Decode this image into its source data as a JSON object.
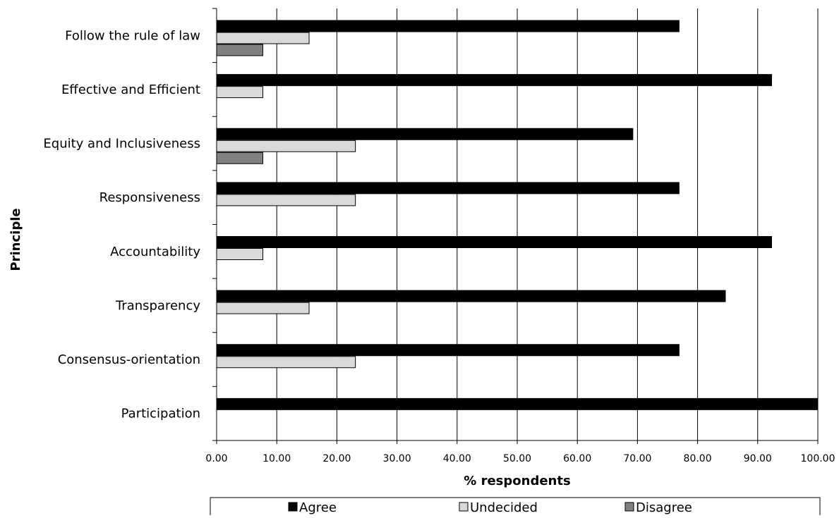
{
  "chart_data": {
    "type": "bar",
    "orientation": "horizontal",
    "categories": [
      "Participation",
      "Consensus-orientation",
      "Transparency",
      "Accountability",
      "Responsiveness",
      "Equity and Inclusiveness",
      "Effective and Efficient",
      "Follow the rule of law"
    ],
    "series": [
      {
        "name": "Agree",
        "color": "#000000",
        "values": [
          100,
          76.92,
          84.62,
          92.31,
          76.92,
          69.23,
          92.31,
          76.92
        ]
      },
      {
        "name": "Undecided",
        "color": "#d9d9d9",
        "values": [
          0,
          23.08,
          15.38,
          7.69,
          23.08,
          23.08,
          7.69,
          15.38
        ]
      },
      {
        "name": "Disagree",
        "color": "#808080",
        "values": [
          0,
          0,
          0,
          0,
          0,
          7.69,
          0,
          7.69
        ]
      }
    ],
    "xlabel": "% respondents",
    "ylabel": "Principle",
    "xlim": [
      0,
      100
    ],
    "xticks": [
      "0.00",
      "10.00",
      "20.00",
      "30.00",
      "40.00",
      "50.00",
      "60.00",
      "70.00",
      "80.00",
      "90.00",
      "100.00"
    ],
    "grid": "vertical",
    "legend_position": "bottom"
  }
}
